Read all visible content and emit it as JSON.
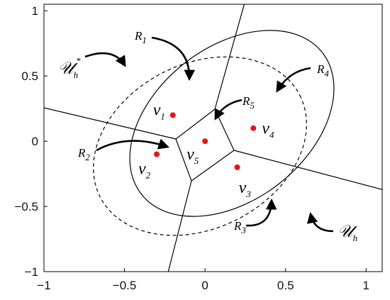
{
  "axes": {
    "xlim": [
      -1,
      1.1
    ],
    "ylim": [
      -1,
      1.05
    ],
    "x_ticks": [
      {
        "value": -1,
        "label": "−1"
      },
      {
        "value": -0.5,
        "label": "−0.5"
      },
      {
        "value": 0,
        "label": "0"
      },
      {
        "value": 0.5,
        "label": "0.5"
      },
      {
        "value": 1,
        "label": "1"
      }
    ],
    "y_ticks": [
      {
        "value": -1,
        "label": "−1"
      },
      {
        "value": -0.5,
        "label": "−0.5"
      },
      {
        "value": 0,
        "label": "0"
      },
      {
        "value": 0.5,
        "label": "0.5"
      },
      {
        "value": 1,
        "label": "1"
      }
    ]
  },
  "points": [
    {
      "id": "v1",
      "x": -0.2,
      "y": 0.2,
      "label": "v",
      "sub": "1"
    },
    {
      "id": "v2",
      "x": -0.3,
      "y": -0.1,
      "label": "v",
      "sub": "2"
    },
    {
      "id": "v3",
      "x": 0.2,
      "y": -0.2,
      "label": "v",
      "sub": "3"
    },
    {
      "id": "v4",
      "x": 0.3,
      "y": 0.1,
      "label": "v",
      "sub": "4"
    },
    {
      "id": "v5",
      "x": 0.0,
      "y": 0.0,
      "label": "v",
      "sub": "5"
    }
  ],
  "point_color": "#e8141b",
  "region_labels": [
    {
      "id": "R1",
      "label": "R",
      "sub": "1"
    },
    {
      "id": "R2",
      "label": "R",
      "sub": "2"
    },
    {
      "id": "R3",
      "label": "R",
      "sub": "3"
    },
    {
      "id": "R4",
      "label": "R",
      "sub": "4"
    },
    {
      "id": "R5",
      "label": "R",
      "sub": "5"
    }
  ],
  "set_labels": {
    "uh_star": {
      "label": "𝒰",
      "sub": "h",
      "sup": "*"
    },
    "uh": {
      "label": "𝒰",
      "sub": "h"
    }
  }
}
